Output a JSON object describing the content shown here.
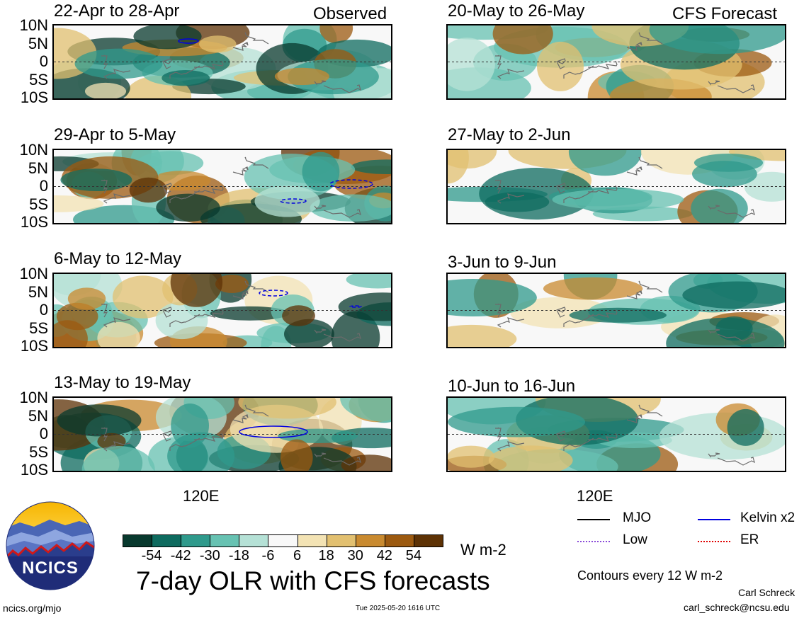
{
  "chart_data": {
    "type": "heatmap",
    "title": "7-day OLR with CFS forecasts",
    "units": "W m-2",
    "contour_note": "Contours every 12 W m-2",
    "x_tick_label": "120E",
    "y_tick_labels": [
      "10N",
      "5N",
      "0",
      "5S",
      "10S"
    ],
    "columns": [
      {
        "label": "Observed",
        "panels": [
          "22-Apr to 28-Apr",
          "29-Apr to 5-May",
          "6-May to 12-May",
          "13-May to 19-May"
        ]
      },
      {
        "label": "CFS Forecast",
        "panels": [
          "20-May to 26-May",
          "27-May to 2-Jun",
          "3-Jun to 9-Jun",
          "10-Jun to 16-Jun"
        ]
      }
    ],
    "colorbar": {
      "ticks": [
        "-54",
        "-42",
        "-30",
        "-18",
        "-6",
        "6",
        "18",
        "30",
        "42",
        "54"
      ],
      "colors": [
        "#08392e",
        "#0e6b5f",
        "#2f9a8c",
        "#67c2b2",
        "#b5e1d6",
        "#f8f8f8",
        "#f3e3b4",
        "#e2c070",
        "#c98a2f",
        "#9c5a10",
        "#5d3205"
      ]
    },
    "legend": [
      {
        "label": "MJO",
        "color": "#000000"
      },
      {
        "label": "Kelvin x2",
        "color": "#0000e0"
      },
      {
        "label": "Low",
        "color": "#8a4ad8"
      },
      {
        "label": "ER",
        "color": "#e00000"
      }
    ]
  },
  "footer": {
    "logo_text": "NCICS",
    "site": "ncics.org/mjo",
    "timestamp": "Tue 2025-05-20 1616 UTC",
    "author": "Carl Schreck",
    "email": "carl_schreck@ncsu.edu"
  }
}
